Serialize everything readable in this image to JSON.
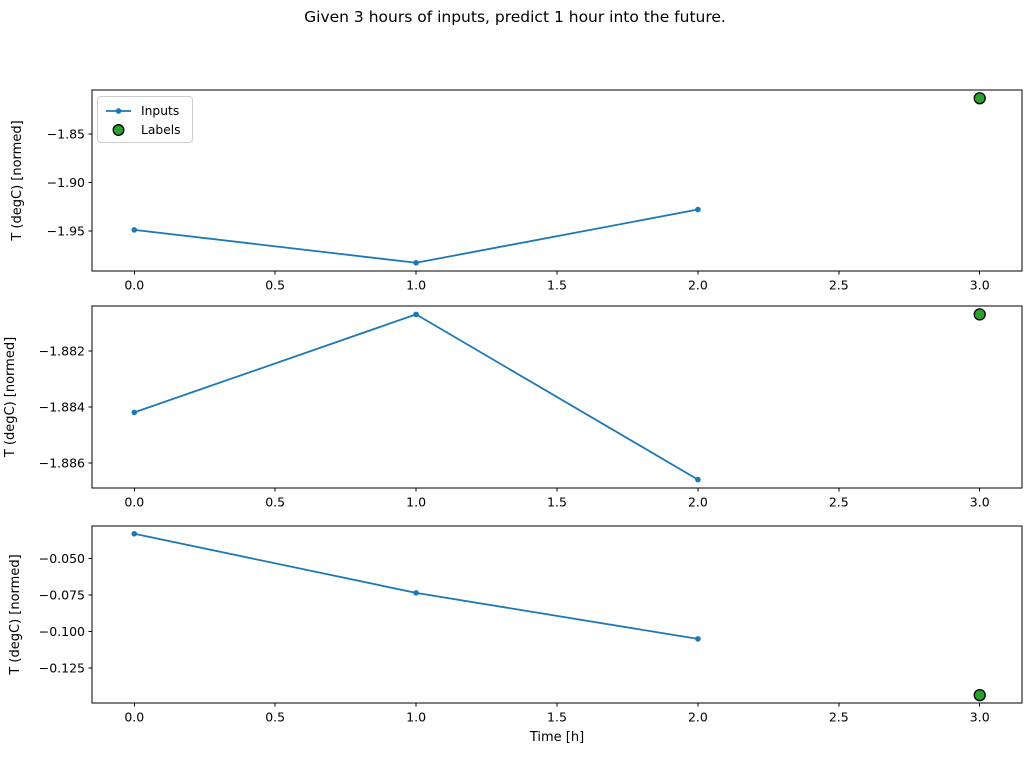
{
  "title": "Given 3 hours of inputs, predict 1 hour into the future.",
  "legend": {
    "position": "upper-left-first-subplot",
    "items": [
      {
        "label": "Inputs",
        "marker": "blue-line-with-dot"
      },
      {
        "label": "Labels",
        "marker": "green-circle-black-edge"
      }
    ]
  },
  "colors": {
    "inputs": "#1f77b4",
    "labels_fill": "#2ca02c",
    "labels_edge": "#000000",
    "axis": "#000000",
    "background": "#ffffff"
  },
  "chart_data": [
    {
      "type": "line",
      "subplot": 1,
      "ylabel": "T (degC) [normed]",
      "xlabel": "",
      "series": [
        {
          "name": "Inputs",
          "x": [
            0,
            1,
            2
          ],
          "y": [
            -1.949,
            -1.983,
            -1.928
          ]
        },
        {
          "name": "Labels",
          "x": [
            3
          ],
          "y": [
            -1.813
          ]
        }
      ],
      "xlim": [
        -0.15,
        3.15
      ],
      "ylim": [
        -1.9915,
        -1.8045
      ],
      "xticks": [
        0.0,
        0.5,
        1.0,
        1.5,
        2.0,
        2.5,
        3.0
      ],
      "xtick_labels": [
        "0.0",
        "0.5",
        "1.0",
        "1.5",
        "2.0",
        "2.5",
        "3.0"
      ],
      "ytick_values": [
        -1.85,
        -1.9,
        -1.95
      ],
      "ytick_labels": [
        "−1.85",
        "−1.90",
        "−1.95"
      ],
      "grid": false
    },
    {
      "type": "line",
      "subplot": 2,
      "ylabel": "T (degC) [normed]",
      "xlabel": "",
      "series": [
        {
          "name": "Inputs",
          "x": [
            0,
            1,
            2
          ],
          "y": [
            -1.8842,
            -1.8807,
            -1.8866
          ]
        },
        {
          "name": "Labels",
          "x": [
            3
          ],
          "y": [
            -1.8807
          ]
        }
      ],
      "xlim": [
        -0.15,
        3.15
      ],
      "ylim": [
        -1.8869,
        -1.8804
      ],
      "xticks": [
        0.0,
        0.5,
        1.0,
        1.5,
        2.0,
        2.5,
        3.0
      ],
      "xtick_labels": [
        "0.0",
        "0.5",
        "1.0",
        "1.5",
        "2.0",
        "2.5",
        "3.0"
      ],
      "ytick_values": [
        -1.882,
        -1.884,
        -1.886
      ],
      "ytick_labels": [
        "−1.882",
        "−1.884",
        "−1.886"
      ],
      "grid": false
    },
    {
      "type": "line",
      "subplot": 3,
      "ylabel": "T (degC) [normed]",
      "xlabel": "Time [h]",
      "series": [
        {
          "name": "Inputs",
          "x": [
            0,
            1,
            2
          ],
          "y": [
            -0.033,
            -0.0735,
            -0.105
          ]
        },
        {
          "name": "Labels",
          "x": [
            3
          ],
          "y": [
            -0.1435
          ]
        }
      ],
      "xlim": [
        -0.15,
        3.15
      ],
      "ylim": [
        -0.1489,
        -0.0277
      ],
      "xticks": [
        0.0,
        0.5,
        1.0,
        1.5,
        2.0,
        2.5,
        3.0
      ],
      "xtick_labels": [
        "0.0",
        "0.5",
        "1.0",
        "1.5",
        "2.0",
        "2.5",
        "3.0"
      ],
      "ytick_values": [
        -0.05,
        -0.075,
        -0.1,
        -0.125
      ],
      "ytick_labels": [
        "−0.050",
        "−0.075",
        "−0.100",
        "−0.125"
      ],
      "grid": false
    }
  ]
}
